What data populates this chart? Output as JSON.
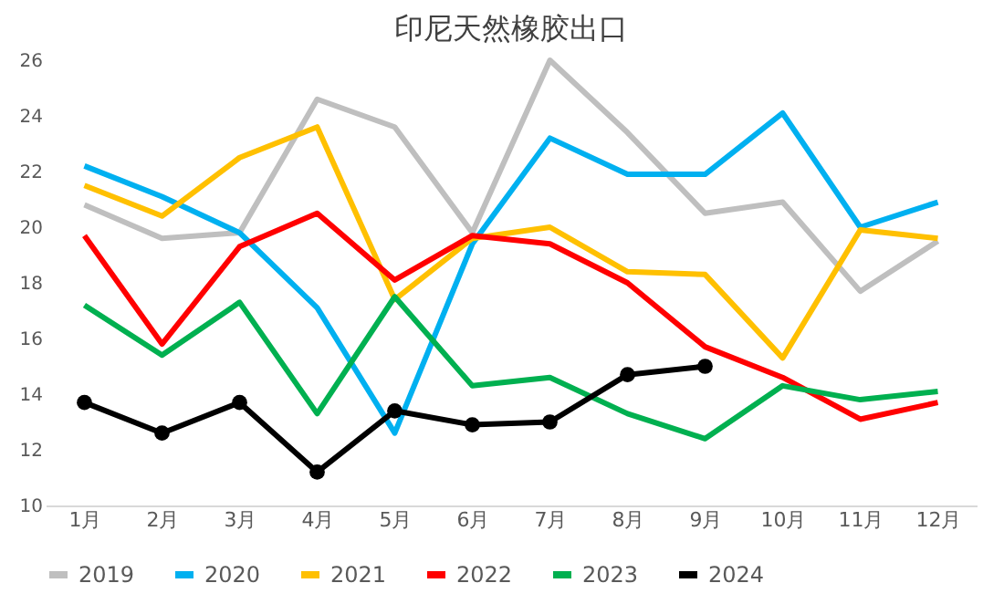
{
  "chart_data": {
    "type": "line",
    "title": "印尼天然橡胶出口",
    "categories": [
      "1月",
      "2月",
      "3月",
      "4月",
      "5月",
      "6月",
      "7月",
      "8月",
      "9月",
      "10月",
      "11月",
      "12月"
    ],
    "series": [
      {
        "name": "2019",
        "color": "#bfbfbf",
        "values": [
          20.8,
          19.6,
          19.8,
          24.6,
          23.6,
          19.8,
          26.0,
          23.4,
          20.5,
          20.9,
          17.7,
          19.5
        ]
      },
      {
        "name": "2020",
        "color": "#00b0f0",
        "values": [
          22.2,
          21.1,
          19.8,
          17.1,
          12.6,
          19.4,
          23.2,
          21.9,
          21.9,
          24.1,
          20.0,
          20.9
        ]
      },
      {
        "name": "2021",
        "color": "#ffc000",
        "values": [
          21.5,
          20.4,
          22.5,
          23.6,
          17.4,
          19.6,
          20.0,
          18.4,
          18.3,
          15.3,
          19.9,
          19.6
        ]
      },
      {
        "name": "2022",
        "color": "#ff0000",
        "values": [
          19.7,
          15.8,
          19.3,
          20.5,
          18.1,
          19.7,
          19.4,
          18.0,
          15.7,
          14.6,
          13.1,
          13.7
        ]
      },
      {
        "name": "2023",
        "color": "#00b050",
        "values": [
          17.2,
          15.4,
          17.3,
          13.3,
          17.5,
          14.3,
          14.6,
          13.3,
          12.4,
          14.3,
          13.8,
          14.1
        ]
      },
      {
        "name": "2024",
        "color": "#000000",
        "marker": "circle",
        "values": [
          13.7,
          12.6,
          13.7,
          11.2,
          13.4,
          12.9,
          13.0,
          14.7,
          15.0,
          null,
          null,
          null
        ]
      }
    ],
    "ylim": [
      10,
      26
    ],
    "yticks": [
      10,
      12,
      14,
      16,
      18,
      20,
      22,
      24,
      26
    ],
    "grid": false,
    "legend": "bottom",
    "marker": "none",
    "line_style": "solid"
  }
}
